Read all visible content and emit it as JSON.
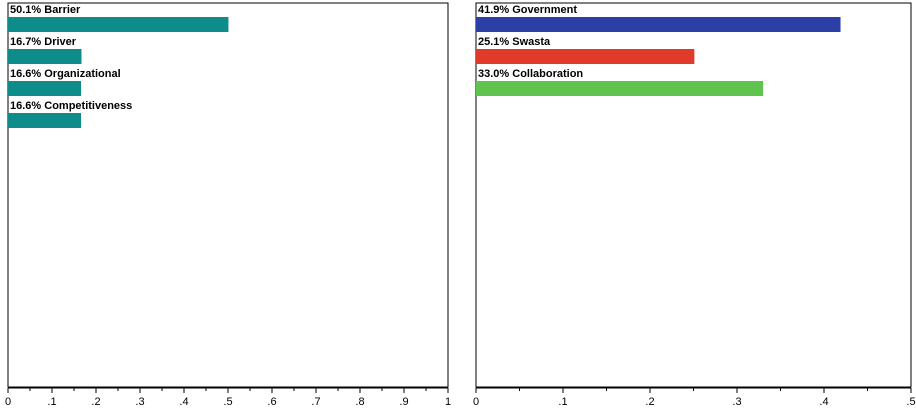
{
  "chart_data": [
    {
      "type": "bar",
      "orientation": "horizontal",
      "categories": [
        "Barrier",
        "Driver",
        "Organizational",
        "Competitiveness"
      ],
      "labels": [
        "50.1% Barrier",
        "16.7% Driver",
        "16.6% Organizational",
        "16.6% Competitiveness"
      ],
      "values": [
        0.501,
        0.167,
        0.166,
        0.166
      ],
      "colors": [
        "#0e8b8b",
        "#0e8b8b",
        "#0e8b8b",
        "#0e8b8b"
      ],
      "xlim": [
        0,
        1
      ],
      "ticks": [
        0,
        0.1,
        0.2,
        0.3,
        0.4,
        0.5,
        0.6,
        0.7,
        0.8,
        0.9,
        1
      ],
      "tick_labels": [
        "0",
        ".1",
        ".2",
        ".3",
        ".4",
        ".5",
        ".6",
        ".7",
        ".8",
        ".9",
        "1"
      ],
      "grid": false
    },
    {
      "type": "bar",
      "orientation": "horizontal",
      "categories": [
        "Government",
        "Swasta",
        "Collaboration"
      ],
      "labels": [
        "41.9% Government",
        "25.1% Swasta",
        "33.0% Collaboration"
      ],
      "values": [
        0.419,
        0.251,
        0.33
      ],
      "colors": [
        "#2b3fa6",
        "#e03a2a",
        "#5ec44e"
      ],
      "xlim": [
        0,
        0.5
      ],
      "ticks": [
        0,
        0.1,
        0.2,
        0.3,
        0.4,
        0.5
      ],
      "tick_labels": [
        "0",
        ".1",
        ".2",
        ".3",
        ".4",
        ".5"
      ],
      "grid": false
    }
  ]
}
